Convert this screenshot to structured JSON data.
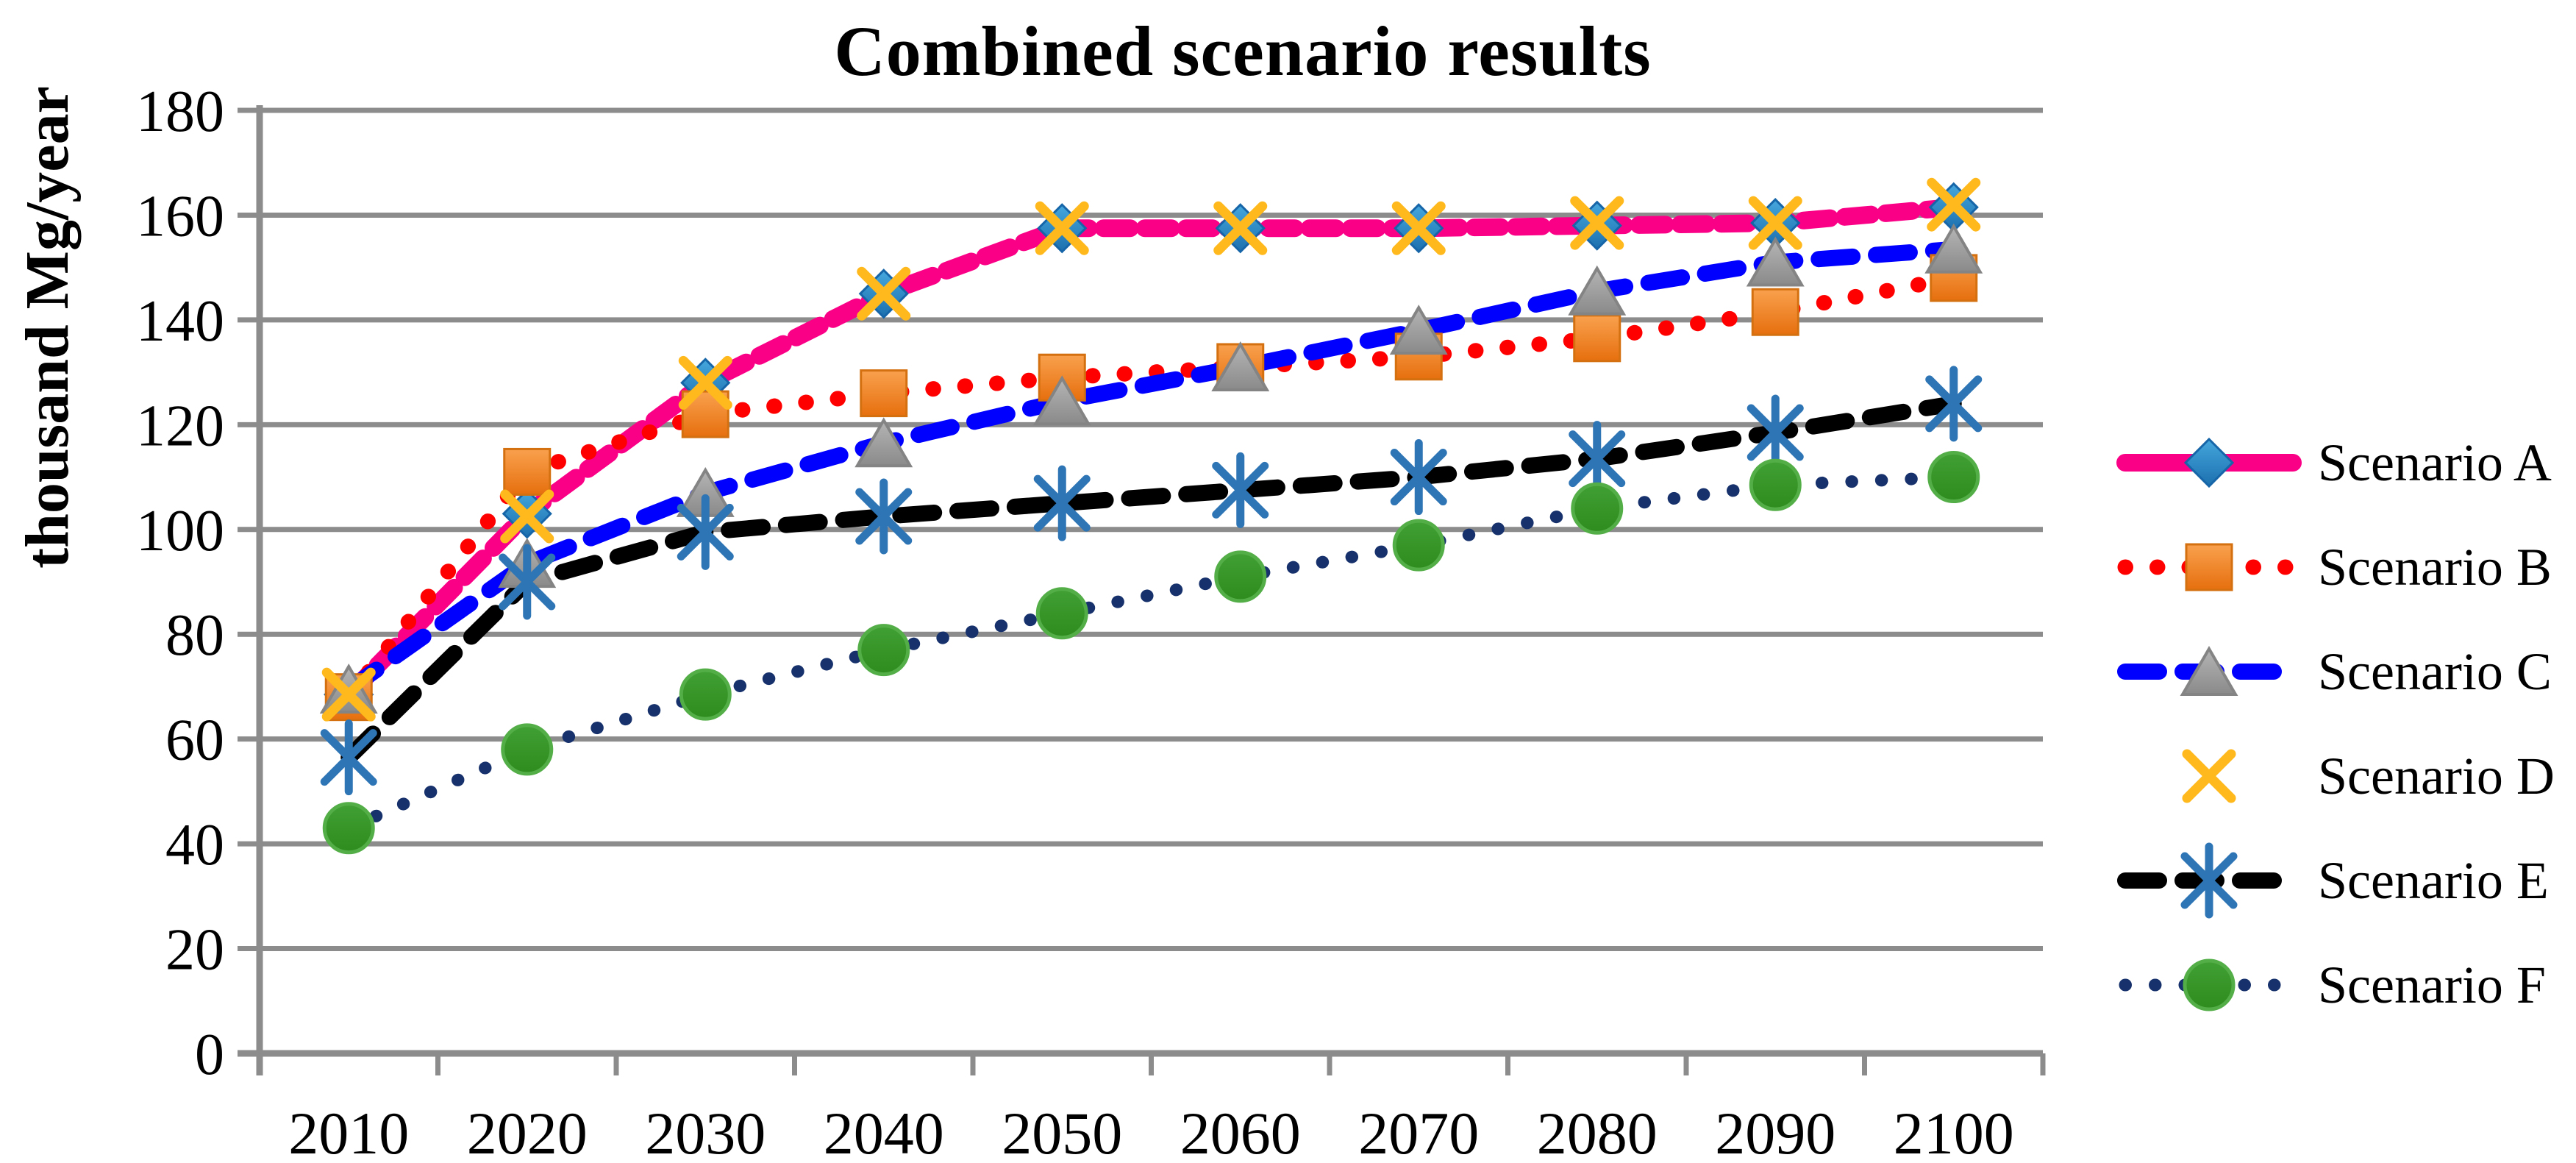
{
  "title": "Combined scenario results",
  "y_axis": {
    "title": "thousand Mg/year"
  },
  "legend": {
    "items": [
      {
        "label": "Scenario A"
      },
      {
        "label": "Scenario B"
      },
      {
        "label": "Scenario C"
      },
      {
        "label": "Scenario D"
      },
      {
        "label": "Scenario E"
      },
      {
        "label": "Scenario F"
      }
    ]
  },
  "chart_data": {
    "type": "line",
    "title": "Combined scenario results",
    "xlabel": "",
    "ylabel": "thousand Mg/year",
    "ylim": [
      0,
      180
    ],
    "ytick_step": 20,
    "yticks": [
      0,
      20,
      40,
      60,
      80,
      100,
      120,
      140,
      160,
      180
    ],
    "grid": true,
    "legend_position": "right",
    "categories": [
      "2010",
      "2020",
      "2030",
      "2040",
      "2050",
      "2060",
      "2070",
      "2080",
      "2090",
      "2100"
    ],
    "series": [
      {
        "name": "Scenario A",
        "values": [
          68.5,
          103,
          128,
          145,
          157.5,
          157.5,
          157.5,
          158,
          158.5,
          161.5
        ],
        "color": "#FA0087",
        "line_style": "heavy-dash",
        "legend_line": "solid",
        "marker": "diamond",
        "marker_fill_top": "#45A7DD",
        "marker_fill_bottom": "#1C6FAE",
        "marker_edge": "#1565A8"
      },
      {
        "name": "Scenario B",
        "values": [
          68,
          111,
          122,
          126,
          129,
          131,
          133,
          136.5,
          141.5,
          148
        ],
        "color": "#FF0000",
        "line_style": "dot",
        "legend_line": "dot",
        "marker": "square",
        "marker_fill_top": "#F9A14E",
        "marker_fill_bottom": "#E66F0E",
        "marker_edge": "#D4700F"
      },
      {
        "name": "Scenario C",
        "values": [
          69.5,
          93.5,
          107,
          116.5,
          124.5,
          131,
          138,
          145.5,
          151,
          153.5
        ],
        "color": "#0000FF",
        "line_style": "dash",
        "legend_line": "dash",
        "marker": "triangle",
        "marker_fill_top": "#B5B5B5",
        "marker_fill_bottom": "#8A8A8A",
        "marker_edge": "#848484"
      },
      {
        "name": "Scenario D",
        "values": [
          68.5,
          102.5,
          128,
          145,
          157.5,
          157.5,
          157.5,
          158.5,
          158.5,
          162
        ],
        "color": "#FFB91D",
        "line_style": "none",
        "legend_line": "none",
        "marker": "x",
        "marker_fill_top": "#FFB91D",
        "marker_fill_bottom": "#FFB91D",
        "marker_edge": "#FFB91D"
      },
      {
        "name": "Scenario E",
        "values": [
          56.5,
          90,
          99.5,
          102.5,
          105,
          107.5,
          110,
          113.5,
          118.5,
          124
        ],
        "color": "#000000",
        "line_style": "dash",
        "legend_line": "dash",
        "marker": "asterisk",
        "marker_fill_top": "#2E75B6",
        "marker_fill_bottom": "#2E75B6",
        "marker_edge": "#2E75B6"
      },
      {
        "name": "Scenario F",
        "values": [
          43,
          58,
          68.5,
          77,
          84,
          91,
          97,
          104,
          108.5,
          110
        ],
        "color": "#16316B",
        "line_style": "dot-small",
        "legend_line": "dot-small",
        "marker": "circle",
        "marker_fill_top": "#41A034",
        "marker_fill_bottom": "#2E8B1D",
        "marker_edge": "#54AE48"
      }
    ],
    "axis_color": "#8C8C8C",
    "gridline_color": "#8C8C8C",
    "tick_label_color": "#000000"
  }
}
